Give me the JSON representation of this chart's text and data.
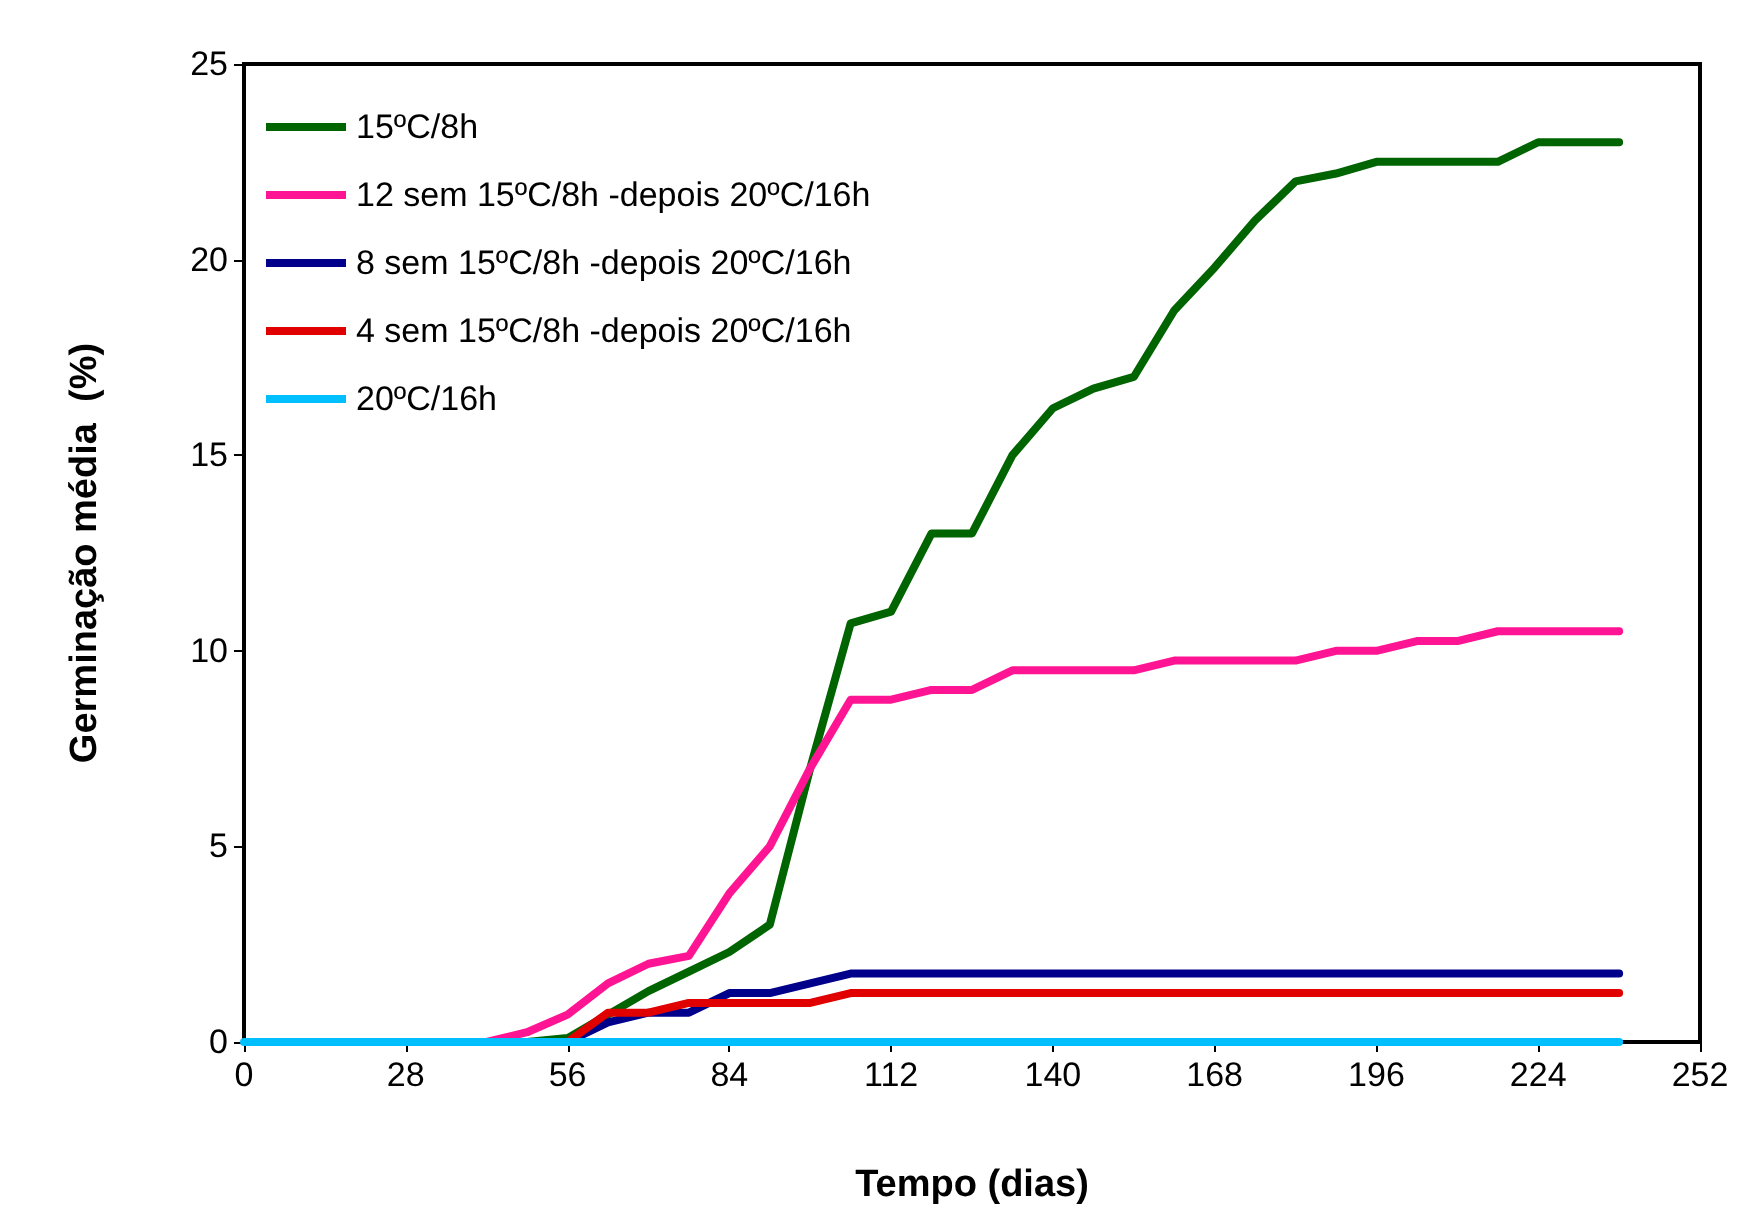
{
  "chart_data": {
    "type": "line",
    "xlabel": "Tempo (dias)",
    "ylabel": "Germinação média  (%)",
    "x": [
      0,
      7,
      14,
      21,
      28,
      35,
      42,
      49,
      56,
      63,
      70,
      77,
      84,
      91,
      98,
      105,
      112,
      119,
      126,
      133,
      140,
      147,
      154,
      161,
      168,
      175,
      182,
      189,
      196,
      203,
      210,
      217,
      224,
      231,
      238
    ],
    "series": [
      {
        "name": "15ºC/8h",
        "color": "#006400",
        "values": [
          null,
          null,
          null,
          null,
          null,
          null,
          0,
          0,
          0.1,
          0.7,
          1.3,
          1.8,
          2.3,
          3,
          7,
          10.7,
          11,
          13,
          13,
          15,
          16.2,
          16.7,
          17,
          18.7,
          19.8,
          21,
          22,
          22.2,
          22.5,
          22.5,
          22.5,
          22.5,
          23,
          23,
          23
        ]
      },
      {
        "name": "12 sem 15ºC/8h -depois 20ºC/16h",
        "color": "#ff1493",
        "values": [
          null,
          null,
          null,
          null,
          null,
          0,
          0,
          0.25,
          0.7,
          1.5,
          2,
          2.2,
          3.8,
          5,
          7,
          8.75,
          8.75,
          9,
          9,
          9.5,
          9.5,
          9.5,
          9.5,
          9.75,
          9.75,
          9.75,
          9.75,
          10,
          10,
          10.25,
          10.25,
          10.5,
          10.5,
          10.5,
          10.5
        ]
      },
      {
        "name": "8 sem 15ºC/8h -depois 20ºC/16h",
        "color": "#00008b",
        "values": [
          null,
          null,
          null,
          null,
          null,
          null,
          0,
          0,
          0,
          0.5,
          0.75,
          0.75,
          1.25,
          1.25,
          1.5,
          1.75,
          1.75,
          1.75,
          1.75,
          1.75,
          1.75,
          1.75,
          1.75,
          1.75,
          1.75,
          1.75,
          1.75,
          1.75,
          1.75,
          1.75,
          1.75,
          1.75,
          1.75,
          1.75,
          1.75
        ]
      },
      {
        "name": "4 sem 15ºC/8h -depois 20ºC/16h",
        "color": "#e00000",
        "values": [
          null,
          null,
          null,
          null,
          null,
          null,
          0,
          0,
          0,
          0.75,
          0.75,
          1,
          1,
          1,
          1,
          1.25,
          1.25,
          1.25,
          1.25,
          1.25,
          1.25,
          1.25,
          1.25,
          1.25,
          1.25,
          1.25,
          1.25,
          1.25,
          1.25,
          1.25,
          1.25,
          1.25,
          1.25,
          1.25,
          1.25
        ]
      },
      {
        "name": "20ºC/16h",
        "color": "#00bfff",
        "values": [
          0,
          0,
          0,
          0,
          0,
          0,
          0,
          0,
          0,
          0,
          0,
          0,
          0,
          0,
          0,
          0,
          0,
          0,
          0,
          0,
          0,
          0,
          0,
          0,
          0,
          0,
          0,
          0,
          0,
          0,
          0,
          0,
          0,
          0,
          0
        ]
      }
    ],
    "xlim": [
      0,
      252
    ],
    "xticks": [
      0,
      28,
      56,
      84,
      112,
      140,
      168,
      196,
      224,
      252
    ],
    "ylim": [
      0,
      25
    ],
    "yticks": [
      0,
      5,
      10,
      15,
      20,
      25
    ],
    "grid": false,
    "legend": "top left",
    "marker": "none",
    "line_style": "solid"
  }
}
